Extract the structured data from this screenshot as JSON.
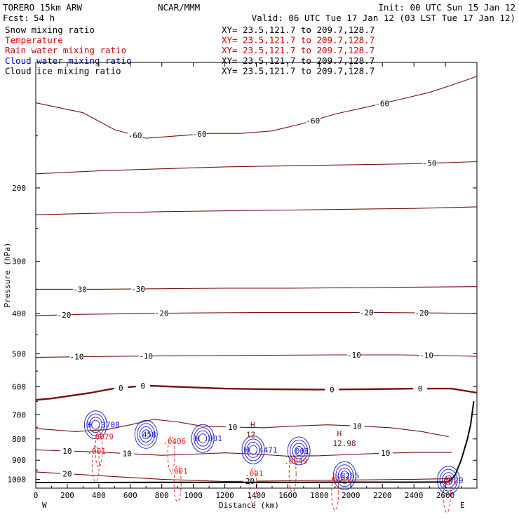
{
  "header": {
    "model": "TORERO  15km ARW",
    "center": "NCAR/MMM",
    "init": "Init: 00 UTC Sun 15 Jan 12",
    "fcst_label": "Fcst:",
    "fcst_value": "54 h",
    "valid": "Valid: 06 UTC Tue 17 Jan 12 (03 LST Tue 17 Jan 12)"
  },
  "legend": [
    {
      "label": "Snow mixing ratio",
      "xy": "XY=  23.5,121.7 to 209.7,128.7",
      "color": "#000000",
      "xycolor": "#000000"
    },
    {
      "label": "Temperature",
      "xy": "XY=  23.5,121.7 to 209.7,128.7",
      "color": "#cc0000",
      "xycolor": "#cc0000"
    },
    {
      "label": "Rain water mixing ratio",
      "xy": "XY=  23.5,121.7 to 209.7,128.7",
      "color": "#cc0000",
      "xycolor": "#cc0000"
    },
    {
      "label": "Cloud water mixing ratio",
      "xy": "XY=  23.5,121.7 to 209.7,128.7",
      "color": "#0000cc",
      "xycolor": "#000000"
    },
    {
      "label": "Cloud ice mixing ratio",
      "xy": "XY=  23.5,121.7 to 209.7,128.7",
      "color": "#000000",
      "xycolor": "#000000"
    }
  ],
  "colors": {
    "temperature": "#7a0e0e",
    "rain": "#dd2222",
    "cloud_water": "#1a1acc",
    "terrain": "#000000",
    "axis": "#000000"
  },
  "chart_data": {
    "type": "contour",
    "xlabel": "Distance (km)",
    "ylabel": "Pressure (hPa)",
    "xlim": [
      0,
      2800
    ],
    "ylim": [
      1050,
      100
    ],
    "x_ticks": [
      0,
      200,
      400,
      600,
      800,
      1000,
      1200,
      1400,
      1600,
      1800,
      2000,
      2200,
      2400,
      2600
    ],
    "y_ticks": [
      200,
      300,
      400,
      500,
      600,
      700,
      800,
      900,
      1000
    ],
    "end_labels": {
      "left": "W",
      "right": "E"
    },
    "temperature_contours": [
      {
        "level": -60,
        "points": [
          [
            0,
            125
          ],
          [
            300,
            132
          ],
          [
            500,
            145
          ],
          [
            700,
            152
          ],
          [
            900,
            150
          ],
          [
            1100,
            148
          ],
          [
            1300,
            148
          ],
          [
            1500,
            146
          ],
          [
            1700,
            140
          ],
          [
            1900,
            133
          ],
          [
            2100,
            128
          ],
          [
            2300,
            123
          ],
          [
            2500,
            118
          ],
          [
            2650,
            113
          ],
          [
            2800,
            108
          ]
        ],
        "labels": [
          [
            630,
            -60
          ],
          [
            1040,
            -60
          ],
          [
            1760,
            -60
          ],
          [
            2200,
            -60
          ]
        ]
      },
      {
        "level": -50,
        "points": [
          [
            0,
            185
          ],
          [
            400,
            182
          ],
          [
            800,
            180
          ],
          [
            1200,
            178
          ],
          [
            1600,
            177
          ],
          [
            2000,
            176
          ],
          [
            2400,
            175
          ],
          [
            2800,
            173
          ]
        ],
        "labels": [
          [
            2500,
            -50
          ]
        ]
      },
      {
        "level": -40,
        "points": [
          [
            0,
            232
          ],
          [
            400,
            230
          ],
          [
            800,
            228
          ],
          [
            1200,
            227
          ],
          [
            1600,
            226
          ],
          [
            2000,
            225
          ],
          [
            2400,
            224
          ],
          [
            2800,
            222
          ]
        ],
        "labels": []
      },
      {
        "level": -30,
        "points": [
          [
            0,
            350
          ],
          [
            400,
            350
          ],
          [
            800,
            349
          ],
          [
            1200,
            348
          ],
          [
            1600,
            348
          ],
          [
            2000,
            347
          ],
          [
            2400,
            346
          ],
          [
            2800,
            345
          ]
        ],
        "labels": [
          [
            280,
            -30
          ],
          [
            650,
            -30
          ]
        ]
      },
      {
        "level": -20,
        "points": [
          [
            0,
            405
          ],
          [
            300,
            402
          ],
          [
            700,
            400
          ],
          [
            1000,
            399
          ],
          [
            1400,
            398
          ],
          [
            1800,
            398
          ],
          [
            2200,
            398
          ],
          [
            2500,
            399
          ],
          [
            2800,
            400
          ]
        ],
        "labels": [
          [
            180,
            -20
          ],
          [
            800,
            -20
          ],
          [
            2100,
            -20
          ],
          [
            2450,
            -20
          ]
        ]
      },
      {
        "level": -10,
        "points": [
          [
            0,
            510
          ],
          [
            300,
            508
          ],
          [
            700,
            506
          ],
          [
            1100,
            505
          ],
          [
            1500,
            504
          ],
          [
            1900,
            503
          ],
          [
            2300,
            503
          ],
          [
            2600,
            505
          ],
          [
            2800,
            507
          ]
        ],
        "labels": [
          [
            260,
            -10
          ],
          [
            700,
            -10
          ],
          [
            2020,
            -10
          ],
          [
            2480,
            -10
          ]
        ]
      },
      {
        "level": 0,
        "points": [
          [
            0,
            645
          ],
          [
            100,
            640
          ],
          [
            350,
            620
          ],
          [
            500,
            605
          ],
          [
            700,
            596
          ],
          [
            900,
            600
          ],
          [
            1200,
            606
          ],
          [
            1500,
            608
          ],
          [
            1800,
            609
          ],
          [
            2100,
            608
          ],
          [
            2400,
            606
          ],
          [
            2640,
            606
          ],
          [
            2800,
            620
          ]
        ],
        "labels": [
          [
            540,
            0
          ],
          [
            680,
            0
          ],
          [
            1880,
            0
          ],
          [
            2440,
            0
          ]
        ]
      },
      {
        "level": 10,
        "points": [
          [
            0,
            755
          ],
          [
            250,
            768
          ],
          [
            450,
            760
          ],
          [
            600,
            740
          ],
          [
            750,
            718
          ],
          [
            900,
            728
          ],
          [
            1050,
            745
          ],
          [
            1250,
            750
          ],
          [
            1450,
            752
          ],
          [
            1650,
            745
          ],
          [
            1850,
            740
          ],
          [
            2050,
            745
          ],
          [
            2250,
            752
          ],
          [
            2450,
            768
          ],
          [
            2620,
            790
          ]
        ],
        "labels": [
          [
            1250,
            10
          ],
          [
            2040,
            10
          ]
        ]
      },
      {
        "level": 10,
        "points": [
          [
            0,
            850
          ],
          [
            200,
            855
          ],
          [
            400,
            860
          ],
          [
            600,
            868
          ],
          [
            800,
            876
          ],
          [
            1000,
            870
          ],
          [
            1200,
            864
          ],
          [
            1400,
            870
          ],
          [
            1600,
            880
          ],
          [
            1800,
            878
          ],
          [
            2000,
            872
          ],
          [
            2200,
            866
          ],
          [
            2400,
            862
          ],
          [
            2640,
            862
          ]
        ],
        "labels": [
          [
            200,
            10
          ],
          [
            580,
            10
          ],
          [
            2220,
            10
          ]
        ]
      },
      {
        "level": 20,
        "points": [
          [
            0,
            960
          ],
          [
            400,
            980
          ],
          [
            800,
            1000
          ],
          [
            1200,
            1012
          ],
          [
            1600,
            1008
          ],
          [
            2000,
            1004
          ],
          [
            2400,
            1000
          ],
          [
            2640,
            996
          ]
        ],
        "labels": [
          [
            200,
            20
          ],
          [
            1360,
            20
          ]
        ]
      }
    ],
    "terrain": [
      [
        0,
        1018
      ],
      [
        400,
        1018
      ],
      [
        800,
        1017
      ],
      [
        1200,
        1017
      ],
      [
        1600,
        1017
      ],
      [
        2000,
        1016
      ],
      [
        2400,
        1016
      ],
      [
        2620,
        1015
      ],
      [
        2660,
        980
      ],
      [
        2700,
        900
      ],
      [
        2740,
        800
      ],
      [
        2760,
        740
      ],
      [
        2780,
        650
      ]
    ],
    "cloud_water_maxima": [
      {
        "x": 380,
        "p": 740,
        "value": "H .3708"
      },
      {
        "x": 700,
        "p": 780,
        "value": ".458"
      },
      {
        "x": 1060,
        "p": 798,
        "value": "H .001"
      },
      {
        "x": 1380,
        "p": 850,
        "value": "H .4471"
      },
      {
        "x": 1670,
        "p": 855,
        "value": ".001"
      },
      {
        "x": 1960,
        "p": 980,
        "value": ".8265"
      },
      {
        "x": 2620,
        "p": 1005,
        "value": ".5729"
      }
    ],
    "rain_maxima": [
      {
        "x": 400,
        "p": 790,
        "value": ".0079"
      },
      {
        "x": 380,
        "p": 855,
        "value": ".001"
      },
      {
        "x": 860,
        "p": 810,
        "value": ".0406"
      },
      {
        "x": 900,
        "p": 955,
        "value": ".001"
      },
      {
        "x": 1380,
        "p": 968,
        "value": ".001"
      },
      {
        "x": 1630,
        "p": 905,
        "value": ".0049"
      },
      {
        "x": 1900,
        "p": 1000,
        "value": ".0303"
      },
      {
        "x": 2610,
        "p": 1013,
        "value": ".001"
      }
    ],
    "temp_maxima": [
      {
        "x": 1380,
        "p": 780,
        "value": "12"
      },
      {
        "x": 1930,
        "p": 820,
        "value": "12.98"
      }
    ]
  }
}
